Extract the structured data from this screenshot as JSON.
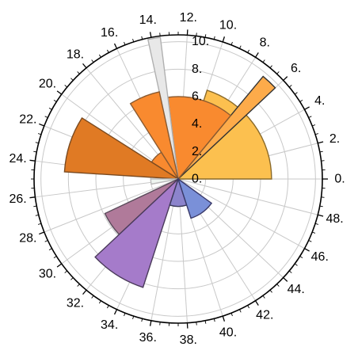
{
  "chart_data": {
    "type": "polar-bar",
    "title": "",
    "angle_ticks": [
      "0.",
      "2.",
      "4.",
      "6.",
      "8.",
      "10.",
      "12.",
      "14.",
      "16.",
      "18.",
      "20.",
      "22.",
      "24.",
      "26.",
      "28.",
      "30.",
      "32.",
      "34.",
      "36.",
      "38.",
      "40.",
      "42.",
      "44.",
      "46.",
      "48."
    ],
    "radial_ticks": [
      "0.",
      "2.",
      "4.",
      "6.",
      "8.",
      "10."
    ],
    "radial_range": [
      0,
      10.5
    ],
    "angular_range": [
      0,
      50
    ],
    "zero_direction": "right",
    "grid": true,
    "bars": [
      {
        "theta_start": 0,
        "theta_end": 10,
        "r": 6.8,
        "color": "#fcc04f",
        "edge": "#8a6a2a",
        "alpha": 1
      },
      {
        "theta_start": 6,
        "theta_end": 7,
        "r": 9.7,
        "color": "#fdab4a",
        "edge": "#333333",
        "alpha": 1
      },
      {
        "theta_start": 7,
        "theta_end": 13.5,
        "r": 6.0,
        "color": "#f98a2f",
        "edge": "#8a5a30",
        "alpha": 1
      },
      {
        "theta_start": 13.5,
        "theta_end": 14.2,
        "r": 10.4,
        "color": "#e8e8e8",
        "edge": "#b0b0b0",
        "alpha": 1
      },
      {
        "theta_start": 14.2,
        "theta_end": 17,
        "r": 6.5,
        "color": "#f98a2f",
        "edge": "#8a5a30",
        "alpha": 1
      },
      {
        "theta_start": 17,
        "theta_end": 20.5,
        "r": 2.3,
        "color": "#f98a2f",
        "edge": "#8a5a30",
        "alpha": 1
      },
      {
        "theta_start": 20.5,
        "theta_end": 24.5,
        "r": 8.3,
        "color": "#e07a24",
        "edge": "#7a4a20",
        "alpha": 1
      },
      {
        "theta_start": 24.5,
        "theta_end": 25,
        "r": 0.2,
        "color": "#e07a24",
        "edge": "#7a4a20",
        "alpha": 1
      },
      {
        "theta_start": 25,
        "theta_end": 26.5,
        "r": 2.0,
        "color": "#eef5f0",
        "edge": "#bbbbbb",
        "alpha": 1
      },
      {
        "theta_start": 28.5,
        "theta_end": 31,
        "r": 5.9,
        "color": "#b07a9a",
        "edge": "#5a4a5a",
        "alpha": 1
      },
      {
        "theta_start": 31,
        "theta_end": 35,
        "r": 8.3,
        "color": "#a57bca",
        "edge": "#4a3a5a",
        "alpha": 1
      },
      {
        "theta_start": 35,
        "theta_end": 40,
        "r": 2.0,
        "color": "#8c84cc",
        "edge": "#3a3a5a",
        "alpha": 1
      },
      {
        "theta_start": 40,
        "theta_end": 45,
        "r": 3.0,
        "color": "#7a90d8",
        "edge": "#3a3a6a",
        "alpha": 1
      }
    ]
  }
}
